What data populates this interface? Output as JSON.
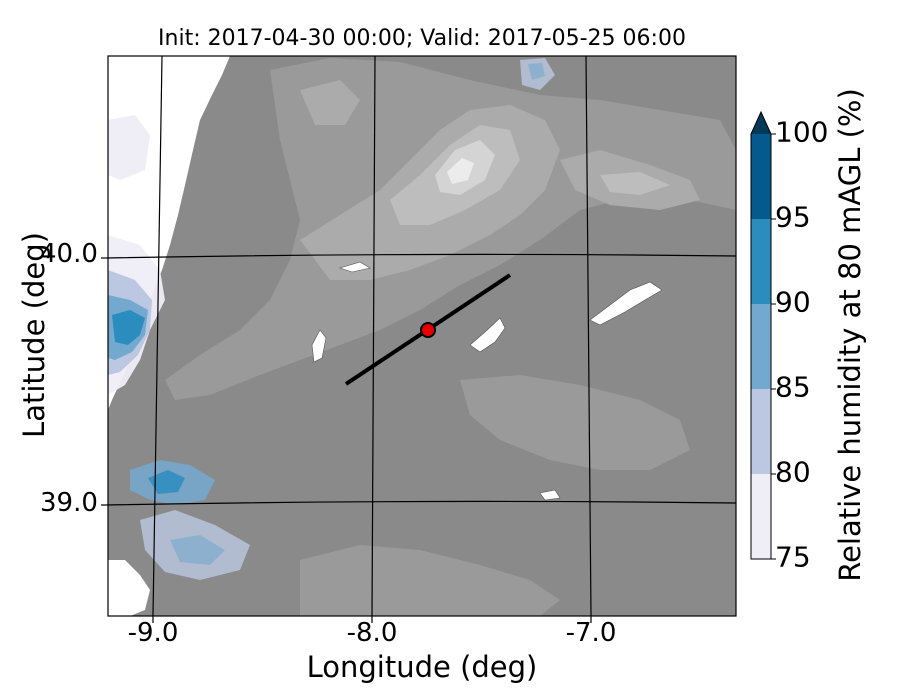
{
  "title": "Init: 2017-04-30 00:00; Valid: 2017-05-25 06:00",
  "x_axis": {
    "label": "Longitude (deg)",
    "ticks": [
      "-9.0",
      "-8.0",
      "-7.0"
    ]
  },
  "y_axis": {
    "label": "Latitude (deg)",
    "ticks": [
      "40.0",
      "39.0"
    ]
  },
  "colorbar": {
    "label": "Relative humidity at 80 mAGL (%)",
    "ticks": [
      "75",
      "80",
      "85",
      "90",
      "95",
      "100"
    ],
    "colors": [
      "#efedf5",
      "#bcc8e1",
      "#74a9cf",
      "#2b8cbe",
      "#045a8d",
      "#023858"
    ],
    "extend": "max"
  },
  "map": {
    "terrain_colors": [
      "#8a8a8a",
      "#9a9a9a",
      "#ababab",
      "#bdbdbd",
      "#d4d4d4",
      "#ececec"
    ],
    "transect": {
      "start": {
        "lon": -8.12,
        "lat": 39.47
      },
      "end": {
        "lon": -7.38,
        "lat": 39.91
      }
    },
    "site_marker": {
      "lon": -7.74,
      "lat": 39.68,
      "color": "#e60000"
    }
  }
}
